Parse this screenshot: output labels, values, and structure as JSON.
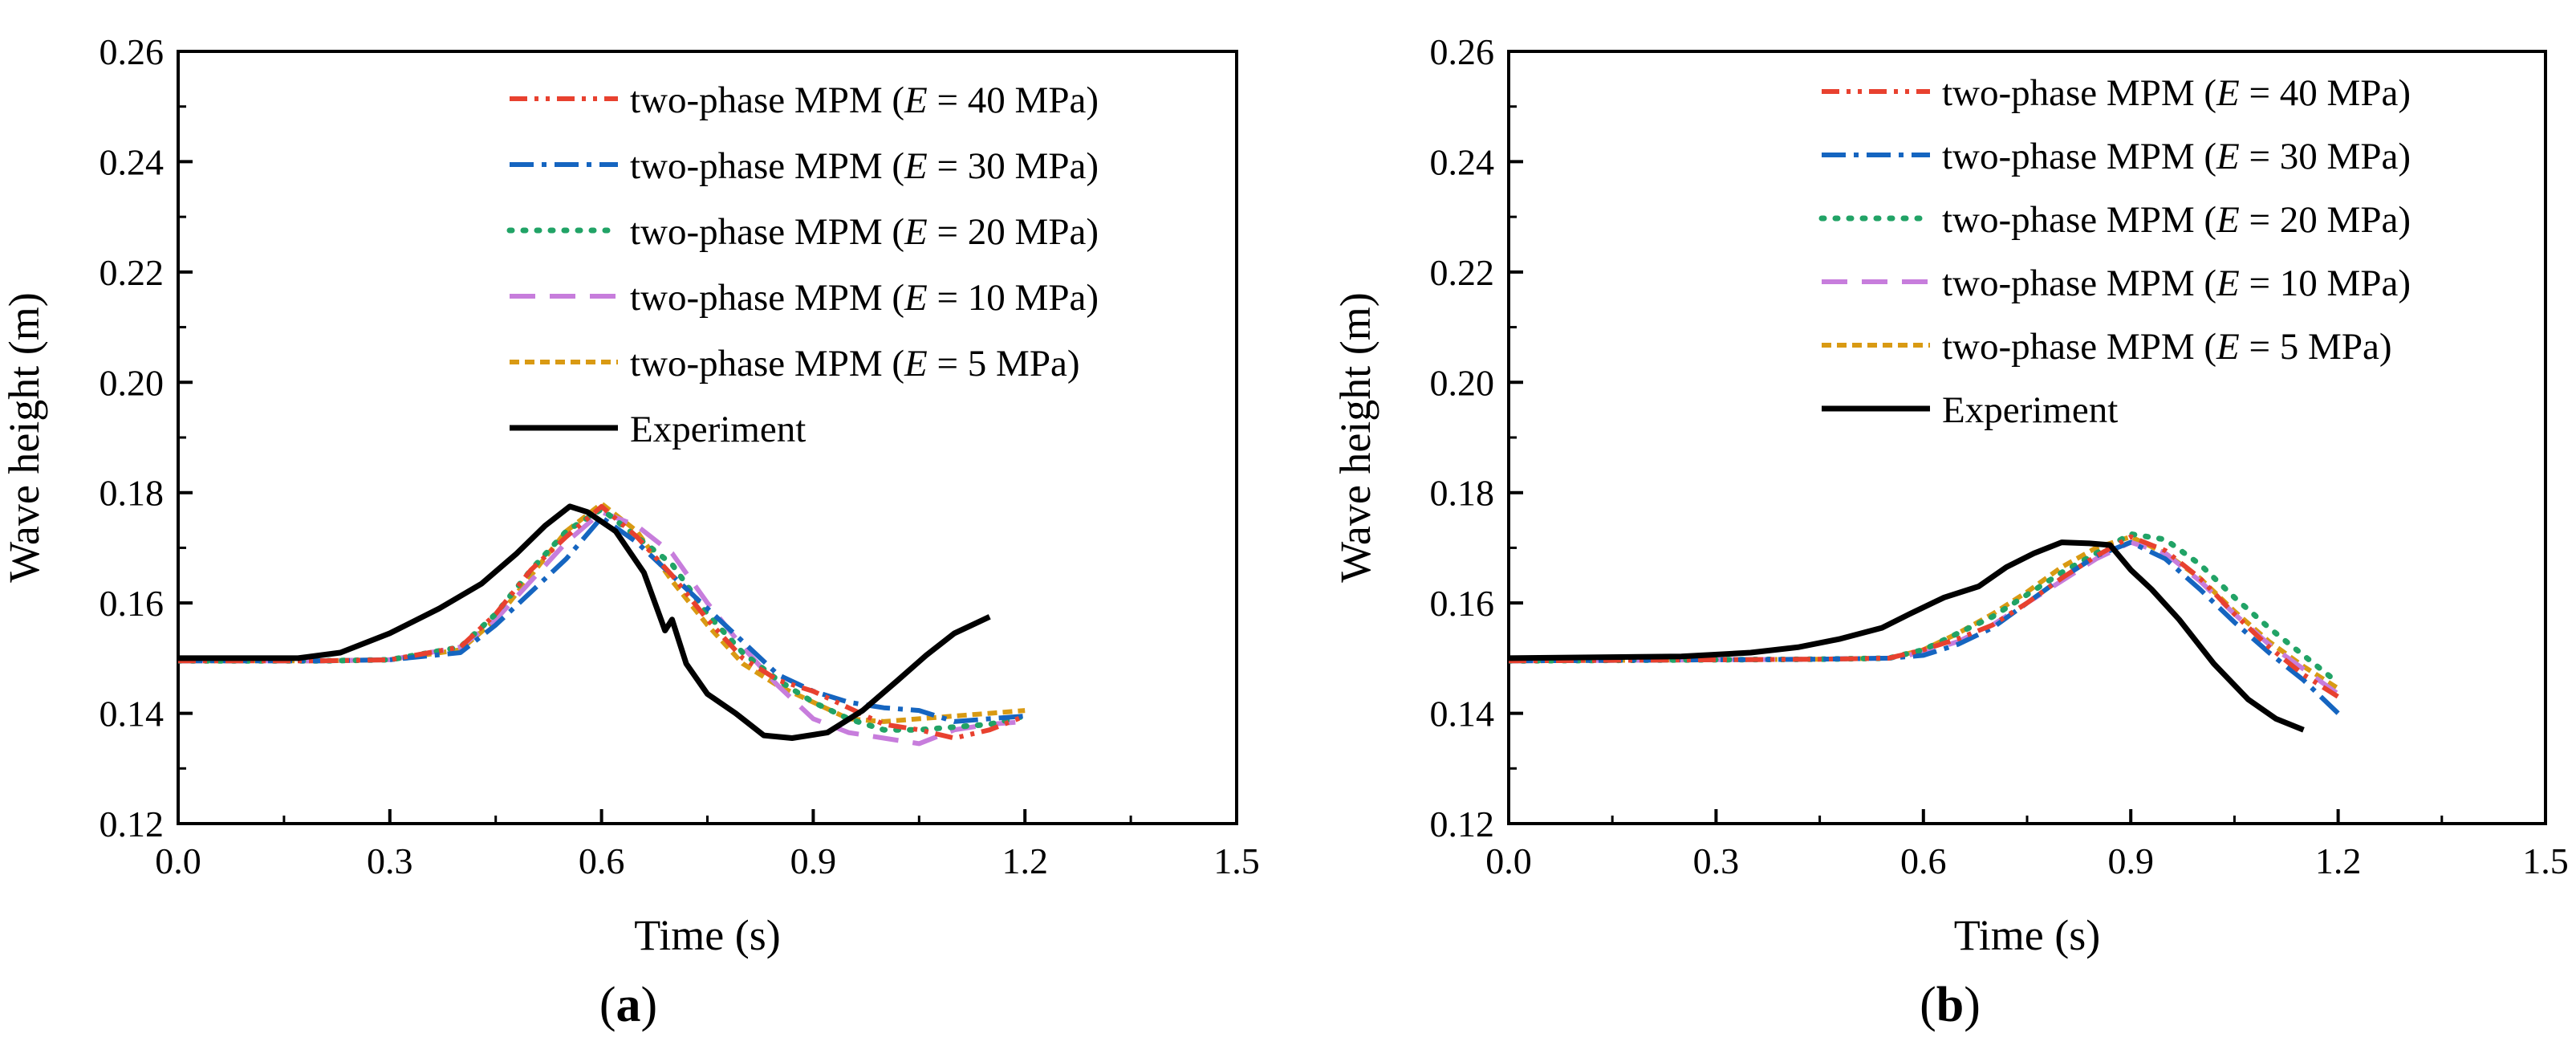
{
  "chart_data": [
    {
      "type": "line",
      "panel_label": "a",
      "xlabel": "Time (s)",
      "ylabel": "Wave height (m)",
      "xlim": [
        0.0,
        1.5
      ],
      "ylim": [
        0.12,
        0.26
      ],
      "xticks": [
        0.0,
        0.3,
        0.6,
        0.9,
        1.2,
        1.5
      ],
      "yticks": [
        0.12,
        0.14,
        0.16,
        0.18,
        0.2,
        0.22,
        0.24,
        0.26
      ],
      "xtick_labels": [
        "0.0",
        "0.3",
        "0.6",
        "0.9",
        "1.2",
        "1.5"
      ],
      "ytick_labels": [
        "0.12",
        "0.14",
        "0.16",
        "0.18",
        "0.20",
        "0.22",
        "0.24",
        "0.26"
      ],
      "legend_position": "top-right",
      "series": [
        {
          "key": "e40",
          "name_prefix": "two-phase MPM (",
          "name_var": "E",
          "name_suffix": " = 40 MPa)",
          "color": "#e8412f",
          "style": "dashdotdot",
          "x": [
            0.0,
            0.2,
            0.3,
            0.4,
            0.45,
            0.5,
            0.55,
            0.6,
            0.65,
            0.7,
            0.75,
            0.8,
            0.85,
            0.9,
            0.95,
            1.0,
            1.05,
            1.1,
            1.15,
            1.2
          ],
          "y": [
            0.1495,
            0.1495,
            0.1497,
            0.152,
            0.158,
            0.166,
            0.172,
            0.1775,
            0.172,
            0.165,
            0.157,
            0.15,
            0.146,
            0.144,
            0.141,
            0.138,
            0.137,
            0.1355,
            0.137,
            0.1395
          ]
        },
        {
          "key": "e30",
          "name_prefix": "two-phase MPM (",
          "name_var": "E",
          "name_suffix": " = 30 MPa)",
          "color": "#1565c0",
          "style": "dashdot",
          "x": [
            0.0,
            0.2,
            0.3,
            0.4,
            0.45,
            0.5,
            0.55,
            0.6,
            0.65,
            0.7,
            0.75,
            0.8,
            0.85,
            0.9,
            0.95,
            1.0,
            1.05,
            1.1,
            1.15,
            1.2
          ],
          "y": [
            0.1495,
            0.1495,
            0.1497,
            0.151,
            0.156,
            0.162,
            0.168,
            0.1755,
            0.171,
            0.165,
            0.159,
            0.153,
            0.147,
            0.144,
            0.142,
            0.141,
            0.1405,
            0.1385,
            0.139,
            0.1395
          ]
        },
        {
          "key": "e20",
          "name_prefix": "two-phase MPM (",
          "name_var": "E",
          "name_suffix": " = 20 MPa)",
          "color": "#21a366",
          "style": "dotted",
          "x": [
            0.0,
            0.2,
            0.3,
            0.4,
            0.45,
            0.5,
            0.55,
            0.6,
            0.65,
            0.7,
            0.75,
            0.8,
            0.85,
            0.9,
            0.95,
            1.0,
            1.05,
            1.1,
            1.15,
            1.2
          ],
          "y": [
            0.1495,
            0.1495,
            0.1497,
            0.152,
            0.158,
            0.166,
            0.173,
            0.177,
            0.172,
            0.167,
            0.158,
            0.151,
            0.146,
            0.142,
            0.139,
            0.137,
            0.137,
            0.1375,
            0.138,
            0.1395
          ]
        },
        {
          "key": "e10",
          "name_prefix": "two-phase MPM (",
          "name_var": "E",
          "name_suffix": " = 10 MPa)",
          "color": "#c77ddc",
          "style": "longdash",
          "x": [
            0.0,
            0.2,
            0.3,
            0.4,
            0.45,
            0.5,
            0.55,
            0.6,
            0.65,
            0.7,
            0.75,
            0.8,
            0.85,
            0.9,
            0.95,
            1.0,
            1.05,
            1.1,
            1.15,
            1.2
          ],
          "y": [
            0.1495,
            0.1495,
            0.1497,
            0.152,
            0.157,
            0.164,
            0.171,
            0.1765,
            0.174,
            0.169,
            0.16,
            0.152,
            0.145,
            0.139,
            0.1365,
            0.1355,
            0.1345,
            0.137,
            0.138,
            0.1385
          ]
        },
        {
          "key": "e5",
          "name_prefix": "two-phase MPM (",
          "name_var": "E",
          "name_suffix": " = 5 MPa)",
          "color": "#d99a13",
          "style": "shortdash",
          "x": [
            0.0,
            0.2,
            0.3,
            0.4,
            0.45,
            0.5,
            0.55,
            0.6,
            0.65,
            0.7,
            0.75,
            0.8,
            0.85,
            0.9,
            0.95,
            1.0,
            1.05,
            1.1,
            1.15,
            1.2
          ],
          "y": [
            0.1495,
            0.1495,
            0.1497,
            0.1515,
            0.157,
            0.165,
            0.173,
            0.178,
            0.173,
            0.164,
            0.156,
            0.149,
            0.145,
            0.142,
            0.139,
            0.1385,
            0.139,
            0.1395,
            0.14,
            0.1405
          ]
        },
        {
          "key": "exp",
          "name_prefix": "Experiment",
          "name_var": "",
          "name_suffix": "",
          "color": "#000000",
          "style": "solid",
          "x": [
            0.0,
            0.17,
            0.23,
            0.3,
            0.37,
            0.43,
            0.48,
            0.52,
            0.555,
            0.58,
            0.62,
            0.66,
            0.69,
            0.7,
            0.72,
            0.75,
            0.79,
            0.83,
            0.87,
            0.92,
            0.97,
            1.02,
            1.06,
            1.1,
            1.15
          ],
          "y": [
            0.15,
            0.15,
            0.151,
            0.1545,
            0.159,
            0.1635,
            0.169,
            0.174,
            0.1775,
            0.1765,
            0.173,
            0.1655,
            0.155,
            0.157,
            0.149,
            0.1435,
            0.14,
            0.136,
            0.1355,
            0.1365,
            0.1405,
            0.146,
            0.1505,
            0.1545,
            0.1575
          ]
        }
      ]
    },
    {
      "type": "line",
      "panel_label": "b",
      "xlabel": "Time (s)",
      "ylabel": "Wave height (m)",
      "xlim": [
        0.0,
        1.5
      ],
      "ylim": [
        0.12,
        0.26
      ],
      "xticks": [
        0.0,
        0.3,
        0.6,
        0.9,
        1.2,
        1.5
      ],
      "yticks": [
        0.12,
        0.14,
        0.16,
        0.18,
        0.2,
        0.22,
        0.24,
        0.26
      ],
      "xtick_labels": [
        "0.0",
        "0.3",
        "0.6",
        "0.9",
        "1.2",
        "1.5"
      ],
      "ytick_labels": [
        "0.12",
        "0.14",
        "0.16",
        "0.18",
        "0.20",
        "0.22",
        "0.24",
        "0.26"
      ],
      "legend_position": "top-right",
      "series": [
        {
          "key": "e40",
          "name_prefix": "two-phase MPM (",
          "name_var": "E",
          "name_suffix": " = 40 MPa)",
          "color": "#e8412f",
          "style": "dashdotdot",
          "x": [
            0.0,
            0.3,
            0.45,
            0.55,
            0.6,
            0.65,
            0.7,
            0.75,
            0.8,
            0.85,
            0.9,
            0.95,
            1.0,
            1.05,
            1.1,
            1.15,
            1.2
          ],
          "y": [
            0.1495,
            0.1497,
            0.1498,
            0.15,
            0.1515,
            0.1535,
            0.156,
            0.16,
            0.1645,
            0.1685,
            0.172,
            0.1695,
            0.1645,
            0.158,
            0.152,
            0.147,
            0.143
          ]
        },
        {
          "key": "e30",
          "name_prefix": "two-phase MPM (",
          "name_var": "E",
          "name_suffix": " = 30 MPa)",
          "color": "#1565c0",
          "style": "dashdot",
          "x": [
            0.0,
            0.3,
            0.45,
            0.55,
            0.6,
            0.65,
            0.7,
            0.75,
            0.8,
            0.85,
            0.9,
            0.95,
            1.0,
            1.05,
            1.1,
            1.15,
            1.2
          ],
          "y": [
            0.1495,
            0.1497,
            0.1498,
            0.15,
            0.1505,
            0.1525,
            0.1555,
            0.16,
            0.1645,
            0.1685,
            0.171,
            0.168,
            0.1625,
            0.1565,
            0.151,
            0.146,
            0.14
          ]
        },
        {
          "key": "e20",
          "name_prefix": "two-phase MPM (",
          "name_var": "E",
          "name_suffix": " = 20 MPa)",
          "color": "#21a366",
          "style": "dotted",
          "x": [
            0.0,
            0.3,
            0.45,
            0.55,
            0.6,
            0.65,
            0.7,
            0.75,
            0.8,
            0.85,
            0.9,
            0.95,
            1.0,
            1.05,
            1.1,
            1.15,
            1.2
          ],
          "y": [
            0.1495,
            0.1497,
            0.1498,
            0.15,
            0.1515,
            0.1545,
            0.1575,
            0.1615,
            0.1655,
            0.169,
            0.1725,
            0.1715,
            0.167,
            0.161,
            0.1555,
            0.1505,
            0.1455
          ]
        },
        {
          "key": "e10",
          "name_prefix": "two-phase MPM (",
          "name_var": "E",
          "name_suffix": " = 10 MPa)",
          "color": "#c77ddc",
          "style": "longdash",
          "x": [
            0.0,
            0.3,
            0.45,
            0.55,
            0.6,
            0.65,
            0.7,
            0.75,
            0.8,
            0.85,
            0.9,
            0.95,
            1.0,
            1.05,
            1.1,
            1.15,
            1.2
          ],
          "y": [
            0.1495,
            0.1497,
            0.1498,
            0.15,
            0.151,
            0.153,
            0.156,
            0.16,
            0.164,
            0.168,
            0.171,
            0.169,
            0.164,
            0.158,
            0.1525,
            0.148,
            0.1435
          ]
        },
        {
          "key": "e5",
          "name_prefix": "two-phase MPM (",
          "name_var": "E",
          "name_suffix": " = 5 MPa)",
          "color": "#d99a13",
          "style": "shortdash",
          "x": [
            0.0,
            0.3,
            0.45,
            0.55,
            0.6,
            0.65,
            0.7,
            0.75,
            0.8,
            0.85,
            0.9,
            0.95,
            1.0,
            1.05,
            1.1,
            1.15,
            1.2
          ],
          "y": [
            0.1495,
            0.1497,
            0.1498,
            0.15,
            0.1515,
            0.1545,
            0.158,
            0.162,
            0.1665,
            0.17,
            0.172,
            0.169,
            0.1645,
            0.1585,
            0.153,
            0.1485,
            0.1445
          ]
        },
        {
          "key": "exp",
          "name_prefix": "Experiment",
          "name_var": "",
          "name_suffix": "",
          "color": "#000000",
          "style": "solid",
          "x": [
            0.0,
            0.25,
            0.35,
            0.42,
            0.48,
            0.54,
            0.58,
            0.63,
            0.68,
            0.72,
            0.76,
            0.8,
            0.84,
            0.87,
            0.9,
            0.93,
            0.97,
            1.02,
            1.07,
            1.11,
            1.15
          ],
          "y": [
            0.15,
            0.1503,
            0.151,
            0.152,
            0.1535,
            0.1555,
            0.158,
            0.161,
            0.163,
            0.1665,
            0.169,
            0.171,
            0.1708,
            0.1705,
            0.166,
            0.1625,
            0.157,
            0.149,
            0.1425,
            0.139,
            0.137
          ]
        }
      ]
    }
  ]
}
